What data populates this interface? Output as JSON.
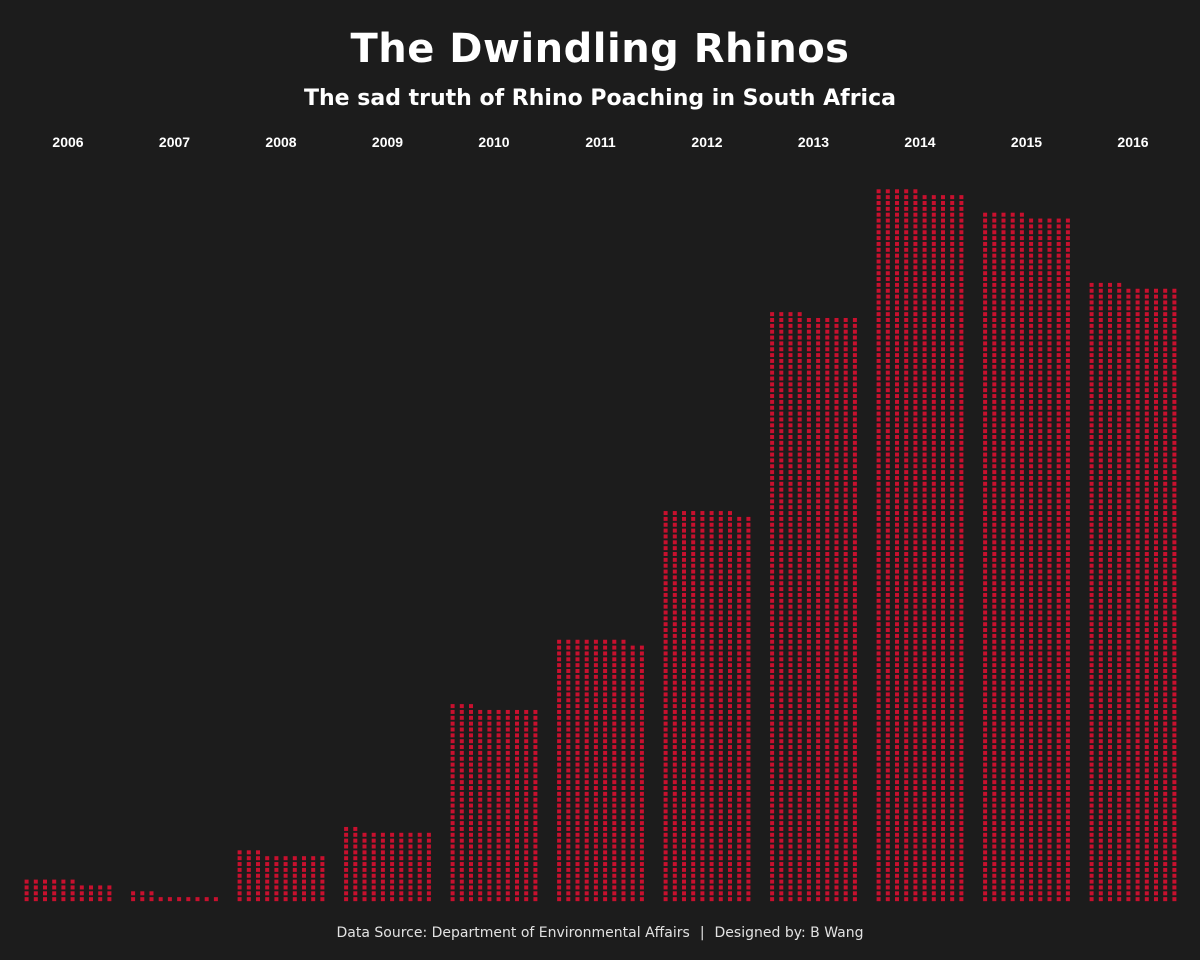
{
  "title": "The Dwindling Rhinos",
  "subtitle": "The sad truth of Rhino Poaching in South Africa",
  "footer": {
    "source": "Data Source: Department of Environmental Affairs",
    "separator": "|",
    "designer": "Designed by: B Wang"
  },
  "colors": {
    "background": "#1c1c1c",
    "dot": "#c8102e",
    "text": "#ffffff"
  },
  "chart_data": {
    "type": "bar",
    "mark": "unit-dot",
    "dot_meaning": "one rhino poached",
    "categories": [
      "2006",
      "2007",
      "2008",
      "2009",
      "2010",
      "2011",
      "2012",
      "2013",
      "2014",
      "2015",
      "2016"
    ],
    "values": [
      36,
      13,
      83,
      122,
      333,
      448,
      668,
      1004,
      1215,
      1175,
      1054
    ],
    "xlabel": "",
    "ylabel": "",
    "grid": false,
    "legend": "none"
  }
}
